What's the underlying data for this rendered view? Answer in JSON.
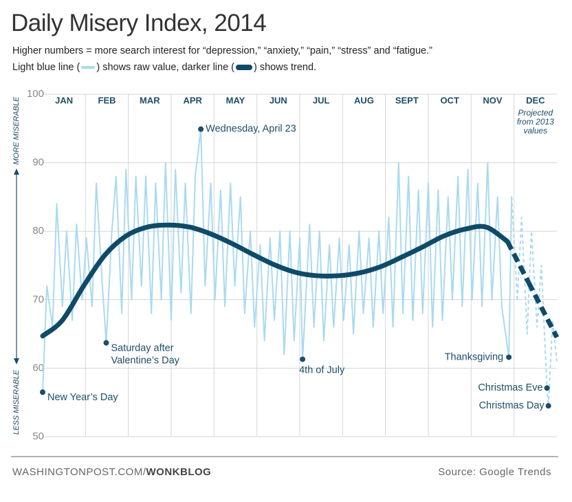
{
  "chart_data": {
    "type": "line",
    "title": "Daily Misery Index, 2014",
    "subtitle": "Higher numbers = more search interest for “depression,” “anxiety,” “pain,” “stress” and “fatigue.”",
    "legend_text": [
      "Light blue line (",
      ") shows raw value, darker line (",
      ") shows trend."
    ],
    "categories": [
      "JAN",
      "FEB",
      "MAR",
      "APR",
      "MAY",
      "JUN",
      "JUL",
      "AUG",
      "SEPT",
      "OCT",
      "NOV",
      "DEC"
    ],
    "axis_labels": {
      "top": "MORE MISERABLE",
      "bottom": "LESS MISERABLE"
    },
    "projection_note": [
      "Projected",
      "from 2013",
      "values"
    ],
    "projected_from": 335,
    "xlim": [
      1,
      365
    ],
    "ylim": [
      50,
      100
    ],
    "yticks": [
      50,
      60,
      70,
      80,
      90,
      100
    ],
    "grid": true,
    "series": [
      {
        "name": "raw value",
        "color": "#a9daf0",
        "x": [
          1,
          4,
          8,
          11,
          15,
          18,
          22,
          25,
          29,
          32,
          36,
          39,
          43,
          46,
          50,
          53,
          57,
          60,
          64,
          67,
          71,
          74,
          78,
          81,
          85,
          88,
          92,
          95,
          99,
          102,
          106,
          109,
          113,
          116,
          120,
          123,
          127,
          130,
          134,
          137,
          141,
          144,
          148,
          151,
          155,
          158,
          162,
          165,
          169,
          172,
          176,
          179,
          183,
          185,
          190,
          193,
          197,
          200,
          204,
          207,
          211,
          214,
          218,
          221,
          225,
          228,
          232,
          235,
          239,
          242,
          246,
          249,
          253,
          256,
          260,
          263,
          267,
          270,
          274,
          277,
          281,
          284,
          288,
          291,
          295,
          298,
          302,
          305,
          309,
          312,
          316,
          319,
          323,
          326,
          331,
          333,
          337,
          340,
          344,
          347,
          351,
          354,
          358,
          359,
          362,
          365
        ],
        "values": [
          56.5,
          72,
          66,
          84,
          69,
          80,
          67,
          81,
          70,
          79,
          69,
          87,
          73,
          63.7,
          80,
          88,
          68,
          89,
          70,
          88,
          72,
          88,
          68,
          87,
          70,
          90,
          67,
          89,
          71,
          87,
          68,
          88,
          94.9,
          72,
          87,
          70,
          86,
          69,
          87,
          72,
          85,
          68,
          80,
          66,
          78,
          64,
          79,
          67,
          80,
          62,
          80,
          64,
          79,
          61.3,
          81,
          66,
          80,
          64,
          78,
          66,
          79,
          67,
          78,
          65,
          80,
          68,
          79,
          66,
          80,
          68,
          82,
          66,
          90,
          68,
          88,
          67,
          86,
          68,
          87,
          66,
          86,
          67,
          85,
          70,
          88,
          69,
          89,
          70,
          87,
          69,
          90,
          70,
          85,
          69,
          61.6,
          85,
          70,
          82,
          65,
          80,
          66,
          75,
          57.1,
          54.5,
          67,
          61
        ]
      },
      {
        "name": "trend",
        "color": "#0f4a67",
        "x": [
          1,
          15,
          30,
          45,
          60,
          75,
          90,
          105,
          120,
          135,
          150,
          165,
          180,
          195,
          210,
          225,
          240,
          255,
          270,
          285,
          300,
          315,
          330,
          345,
          365
        ],
        "values": [
          64.7,
          67,
          72,
          76.5,
          79.3,
          80.6,
          80.9,
          80.6,
          79.6,
          78.2,
          76.6,
          75.1,
          74,
          73.5,
          73.5,
          73.9,
          74.8,
          76.2,
          77.7,
          79.3,
          80.3,
          80.6,
          78.5,
          72.5,
          64.5
        ]
      }
    ],
    "annotations": [
      {
        "label": [
          "New Year’s Day"
        ],
        "x": 1,
        "y": 56.5
      },
      {
        "label": [
          "Saturday after",
          "Valentine’s Day"
        ],
        "x": 46,
        "y": 63.7
      },
      {
        "label": [
          "Wednesday, April 23"
        ],
        "x": 113,
        "y": 94.9
      },
      {
        "label": [
          "4th of July"
        ],
        "x": 185,
        "y": 61.3
      },
      {
        "label": [
          "Thanksgiving"
        ],
        "x": 331,
        "y": 61.6
      },
      {
        "label": [
          "Christmas Eve"
        ],
        "x": 358,
        "y": 57.1
      },
      {
        "label": [
          "Christmas Day"
        ],
        "x": 359,
        "y": 54.5
      }
    ],
    "source_site": "WASHINGTONPOST.COM/",
    "source_blog": "WONKBLOG",
    "source": "Source: Google Trends"
  }
}
